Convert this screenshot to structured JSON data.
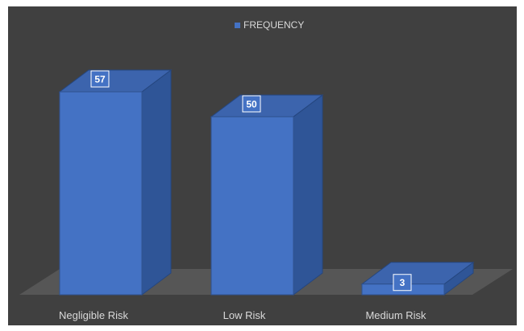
{
  "chart_data": {
    "type": "bar",
    "style": "3d-column",
    "categories": [
      "Negligible Risk",
      "Low Risk",
      "Medium Risk"
    ],
    "series": [
      {
        "name": "FREQUENCY",
        "values": [
          57,
          50,
          3
        ]
      }
    ],
    "data_labels": true,
    "legend": "top-center",
    "grid": false,
    "title": "",
    "xlabel": "",
    "ylabel": "",
    "ylim": [
      0,
      60
    ]
  },
  "colors": {
    "background": "#404040",
    "bar_front": "#4472c4",
    "bar_side": "#2f5597",
    "bar_top": "#3c64ad",
    "floor": "#5a5a5a",
    "text": "#d9d9d9",
    "label_box": "#4472c4"
  }
}
